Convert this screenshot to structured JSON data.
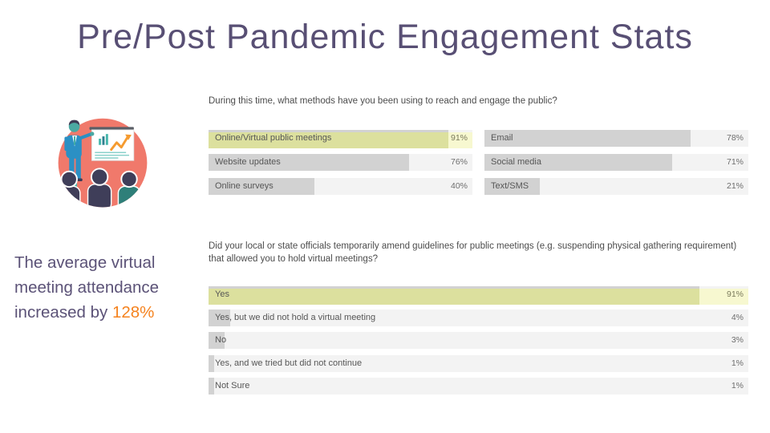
{
  "slide": {
    "title": "Pre/Post Pandemic Engagement Stats",
    "callout": {
      "text": "The average virtual meeting attendance increased by ",
      "highlight": "128%"
    },
    "illustration": {
      "name": "presenter-with-growth-chart-illustration"
    }
  },
  "colors": {
    "title_text": "#584f74",
    "callout_text": "#5b5277",
    "callout_highlight": "#f5821e",
    "question_text": "#4c4c4c",
    "bar_track": "#f3f3f3",
    "bar_fill": "#d2d2d2",
    "highlight_bar": "#dce09e",
    "highlight_track": "#f7f8d0",
    "illustration_circle": "#f0796b",
    "illustration_blue": "#2b90c4",
    "illustration_teal": "#45b6ab",
    "illustration_orange": "#f59b30"
  },
  "chart_data": [
    {
      "type": "bar",
      "orientation": "horizontal",
      "unit": "%",
      "xlim": [
        0,
        100
      ],
      "layout": "two-column",
      "grid": false,
      "title": "During this time, what methods have you been using to reach and engage the public?",
      "columns": [
        {
          "rows": [
            {
              "label": "Online/Virtual public meetings",
              "value": 91,
              "highlighted": true
            },
            {
              "label": "Website updates",
              "value": 76,
              "highlighted": false
            },
            {
              "label": "Online surveys",
              "value": 40,
              "highlighted": false
            }
          ]
        },
        {
          "rows": [
            {
              "label": "Email",
              "value": 78,
              "highlighted": false
            },
            {
              "label": "Social media",
              "value": 71,
              "highlighted": false
            },
            {
              "label": "Text/SMS",
              "value": 21,
              "highlighted": false
            }
          ]
        }
      ]
    },
    {
      "type": "bar",
      "orientation": "horizontal",
      "unit": "%",
      "xlim": [
        0,
        100
      ],
      "layout": "single-column",
      "grid": false,
      "title": "Did your local or state officials temporarily amend guidelines for public meetings (e.g. suspending physical gathering requirement) that allowed you to hold virtual meetings?",
      "columns": [
        {
          "rows": [
            {
              "label": "Yes",
              "value": 91,
              "highlighted": true
            },
            {
              "label": "Yes, but we did not hold a virtual meeting",
              "value": 4,
              "highlighted": false
            },
            {
              "label": "No",
              "value": 3,
              "highlighted": false
            },
            {
              "label": "Yes, and we tried but did not continue",
              "value": 1,
              "highlighted": false
            },
            {
              "label": "Not Sure",
              "value": 1,
              "highlighted": false
            }
          ]
        }
      ]
    }
  ]
}
